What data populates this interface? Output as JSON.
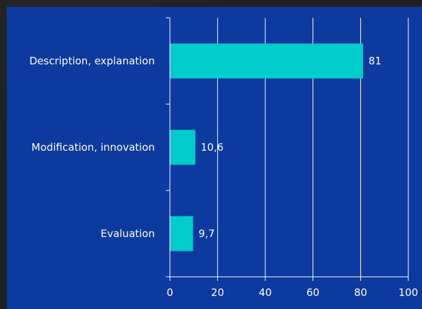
{
  "chart_data": {
    "type": "bar",
    "orientation": "horizontal",
    "categories": [
      "Description, explanation",
      "Modification, innovation",
      "Evaluation"
    ],
    "values": [
      81,
      10.6,
      9.7
    ],
    "value_labels": [
      "81",
      "10,6",
      "9,7"
    ],
    "xlim": [
      0,
      100
    ],
    "x_ticks": [
      0,
      20,
      40,
      60,
      80,
      100
    ],
    "x_tick_labels": [
      "0",
      "20",
      "40",
      "60",
      "80",
      "100"
    ],
    "grid": "vertical",
    "colors": {
      "bar": "#00cccc",
      "plot_background": "#0c3a9e",
      "text": "#ffffff",
      "grid": "#ffffff"
    }
  }
}
